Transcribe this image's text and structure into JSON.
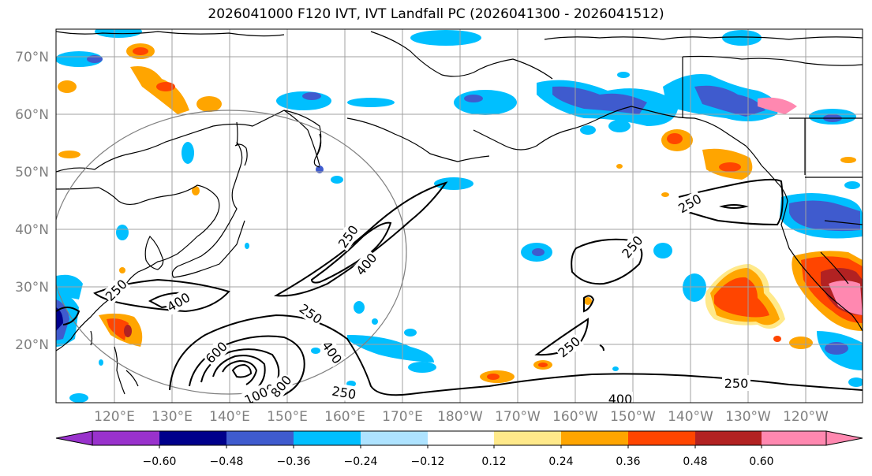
{
  "title": "2026041000 F120 IVT, IVT Landfall PC (2026041300 - 2026041512)",
  "lat_labels": [
    "70°N",
    "60°N",
    "50°N",
    "40°N",
    "30°N",
    "20°N"
  ],
  "lon_labels": [
    "120°E",
    "130°E",
    "140°E",
    "150°E",
    "160°E",
    "170°E",
    "180°W",
    "170°W",
    "160°W",
    "150°W",
    "140°W",
    "130°W",
    "120°W"
  ],
  "colorbar": {
    "ticks": [
      "−0.60",
      "−0.48",
      "−0.36",
      "−0.24",
      "−0.12",
      "0.12",
      "0.24",
      "0.36",
      "0.48",
      "0.60"
    ],
    "colors": [
      "#9932cc",
      "#00008b",
      "#3f5bce",
      "#00bfff",
      "#aee3ff",
      "#ffffff",
      "#ffe98a",
      "#ffa500",
      "#ff4500",
      "#b22222",
      "#ff88b0"
    ]
  },
  "contour_labels": {
    "c1": "250",
    "c2": "400",
    "c3": "250",
    "c4": "400",
    "c5": "250",
    "c6": "400",
    "c7": "600",
    "c8": "1000",
    "c9": "800",
    "c10": "250",
    "c11": "250",
    "c12": "250",
    "c13": "250",
    "c14": "400",
    "c15": "250"
  },
  "colors": {
    "grid": "#a0a0a0",
    "coast": "#000000",
    "circle": "#808080"
  }
}
